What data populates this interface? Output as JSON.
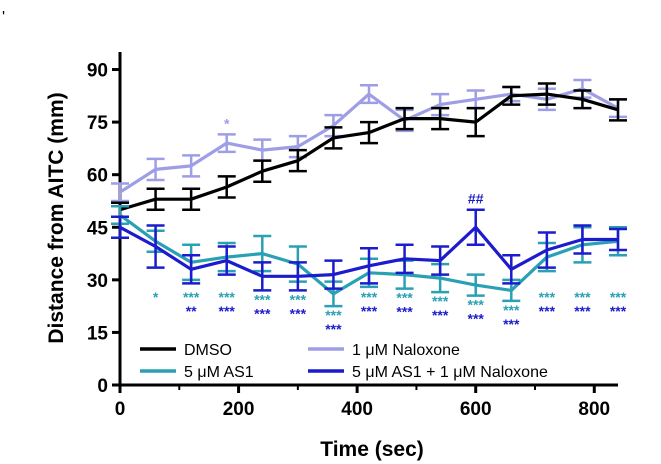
{
  "chart_data": {
    "type": "line",
    "panel_label": "'",
    "xlabel": "Time (sec)",
    "ylabel": "Distance from AITC (mm)",
    "xlim": [
      0,
      840
    ],
    "ylim": [
      0,
      95
    ],
    "xticks": [
      0,
      200,
      400,
      600,
      800
    ],
    "yticks": [
      0,
      15,
      30,
      45,
      60,
      75,
      90
    ],
    "x": [
      0,
      60,
      120,
      180,
      240,
      300,
      360,
      420,
      480,
      540,
      600,
      660,
      720,
      780,
      840
    ],
    "series": [
      {
        "name": "DMSO",
        "color": "#000000",
        "values": [
          50,
          53,
          53,
          56.5,
          61,
          64,
          70.5,
          72,
          76,
          76,
          75,
          82.5,
          83,
          81.5,
          78.5
        ],
        "errors": [
          2,
          3,
          3,
          3,
          3,
          3,
          3,
          3,
          3,
          3,
          4,
          2.5,
          3,
          2.5,
          3
        ]
      },
      {
        "name": "1 μM Naloxone",
        "color": "#9e9ee6",
        "values": [
          55,
          61.5,
          62.5,
          69,
          67,
          68,
          74,
          83,
          75.5,
          80,
          81.5,
          83,
          81.5,
          84.5,
          79
        ],
        "errors": [
          2.5,
          3,
          3,
          2.5,
          3,
          3,
          3,
          2.5,
          3,
          3,
          2.5,
          2,
          3,
          2.5,
          2.5
        ]
      },
      {
        "name": "5 μM AS1",
        "color": "#2aa0b4",
        "values": [
          48.5,
          41,
          35,
          36.5,
          37.5,
          34.5,
          26,
          32,
          31.5,
          30.5,
          28.5,
          27,
          36.5,
          40,
          41
        ],
        "errors": [
          2.5,
          3,
          5,
          4,
          5,
          5,
          3.5,
          4,
          4,
          4,
          3,
          3,
          4,
          5,
          4
        ]
      },
      {
        "name": "5 μM AS1 + 1 μM Naloxone",
        "color": "#1c1ccd",
        "values": [
          45,
          39.5,
          33,
          35.5,
          31,
          31,
          31.5,
          34,
          36,
          35.5,
          45,
          33,
          38.5,
          41.5,
          41.5
        ],
        "errors": [
          3,
          6,
          4,
          4,
          4,
          4,
          4,
          5,
          4,
          4,
          5,
          4,
          5,
          4,
          3
        ]
      }
    ],
    "annotations": [
      {
        "x": 60,
        "text": "*",
        "series": "5 μM AS1",
        "row": 0
      },
      {
        "x": 180,
        "text": "*",
        "series": "1 μM Naloxone",
        "row": -1
      },
      {
        "x": 120,
        "text": "***",
        "series": "5 μM AS1",
        "row": 0
      },
      {
        "x": 120,
        "text": "**",
        "series": "5 μM AS1 + 1 μM Naloxone",
        "row": 1
      },
      {
        "x": 180,
        "text": "***",
        "series": "5 μM AS1",
        "row": 0
      },
      {
        "x": 180,
        "text": "***",
        "series": "5 μM AS1 + 1 μM Naloxone",
        "row": 1
      },
      {
        "x": 240,
        "text": "***",
        "series": "5 μM AS1",
        "row": 0
      },
      {
        "x": 240,
        "text": "***",
        "series": "5 μM AS1 + 1 μM Naloxone",
        "row": 1
      },
      {
        "x": 300,
        "text": "***",
        "series": "5 μM AS1",
        "row": 0
      },
      {
        "x": 300,
        "text": "***",
        "series": "5 μM AS1 + 1 μM Naloxone",
        "row": 1
      },
      {
        "x": 360,
        "text": "***",
        "series": "5 μM AS1",
        "row": 0
      },
      {
        "x": 360,
        "text": "***",
        "series": "5 μM AS1 + 1 μM Naloxone",
        "row": 1
      },
      {
        "x": 420,
        "text": "***",
        "series": "5 μM AS1",
        "row": 0
      },
      {
        "x": 420,
        "text": "***",
        "series": "5 μM AS1 + 1 μM Naloxone",
        "row": 1
      },
      {
        "x": 480,
        "text": "***",
        "series": "5 μM AS1",
        "row": 0
      },
      {
        "x": 480,
        "text": "***",
        "series": "5 μM AS1 + 1 μM Naloxone",
        "row": 1
      },
      {
        "x": 540,
        "text": "***",
        "series": "5 μM AS1",
        "row": 0
      },
      {
        "x": 540,
        "text": "***",
        "series": "5 μM AS1 + 1 μM Naloxone",
        "row": 1
      },
      {
        "x": 600,
        "text": "***",
        "series": "5 μM AS1",
        "row": 0
      },
      {
        "x": 600,
        "text": "***",
        "series": "5 μM AS1 + 1 μM Naloxone",
        "row": 1
      },
      {
        "x": 600,
        "text": "##",
        "series": "5 μM AS1 + 1 μM Naloxone",
        "row": -1
      },
      {
        "x": 660,
        "text": "***",
        "series": "5 μM AS1",
        "row": 0
      },
      {
        "x": 660,
        "text": "***",
        "series": "5 μM AS1 + 1 μM Naloxone",
        "row": 1
      },
      {
        "x": 720,
        "text": "***",
        "series": "5 μM AS1",
        "row": 0
      },
      {
        "x": 720,
        "text": "***",
        "series": "5 μM AS1 + 1 μM Naloxone",
        "row": 1
      },
      {
        "x": 780,
        "text": "***",
        "series": "5 μM AS1",
        "row": 0
      },
      {
        "x": 780,
        "text": "***",
        "series": "5 μM AS1 + 1 μM Naloxone",
        "row": 1
      },
      {
        "x": 840,
        "text": "***",
        "series": "5 μM AS1",
        "row": 0
      },
      {
        "x": 840,
        "text": "***",
        "series": "5 μM AS1 + 1 μM Naloxone",
        "row": 1
      }
    ],
    "legend": {
      "position": "bottom-left",
      "order": [
        "DMSO",
        "1 μM Naloxone",
        "5 μM AS1",
        "5 μM AS1 + 1 μM Naloxone"
      ]
    }
  }
}
